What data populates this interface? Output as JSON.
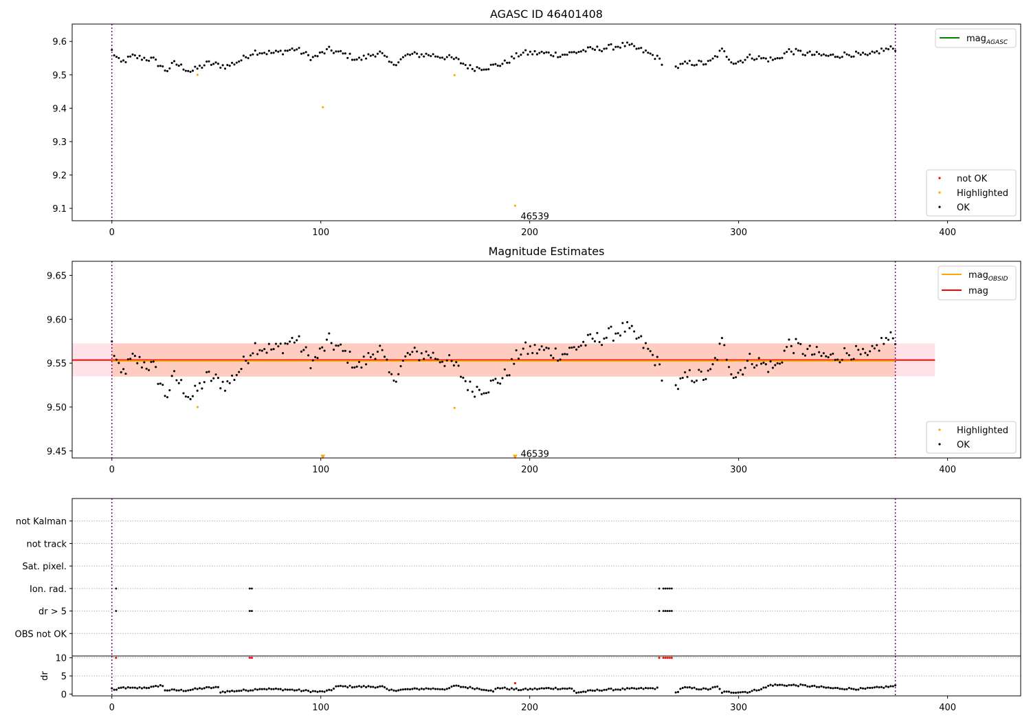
{
  "figure": {
    "colors": {
      "ok": "#000000",
      "highlighted": "#ffa500",
      "not_ok": "#ff0000",
      "mag_agasc": "#008000",
      "mag_obsid": "#ffa500",
      "mag": "#ff0000",
      "obsid_boundary": "#800080",
      "band_outer": "#ffc0cb",
      "band_inner": "#ffa07a",
      "flag_grid": "#b0b0b0"
    }
  },
  "chart_data": [
    {
      "type": "scatter",
      "title": "AGASC ID 46401408",
      "xlim": [
        -19,
        435
      ],
      "ylim": [
        9.063,
        9.652
      ],
      "xticks": [
        "0",
        "100",
        "200",
        "300",
        "400"
      ],
      "yticks": [
        "9.1",
        "9.2",
        "9.3",
        "9.4",
        "9.5",
        "9.6"
      ],
      "grid": false,
      "obsid_boundaries": [
        0,
        375
      ],
      "obsid_label": {
        "text": "46539",
        "x": 188,
        "y": 9.075
      },
      "legend_lines": {
        "position": "top-right",
        "entries": [
          {
            "label": "mag",
            "subscript": "AGASC",
            "style": "line",
            "color": "#008000"
          }
        ]
      },
      "legend_points": {
        "position": "bottom-right",
        "entries": [
          {
            "label": "not OK",
            "style": "point",
            "color": "#ff0000"
          },
          {
            "label": "Highlighted",
            "style": "point",
            "color": "#ffa500"
          },
          {
            "label": "OK",
            "style": "point",
            "color": "#000000"
          }
        ]
      },
      "series": [
        {
          "name": "Highlighted",
          "color": "#ffa500",
          "marker": "point",
          "points": [
            [
              41,
              9.5
            ],
            [
              101,
              9.403
            ],
            [
              164,
              9.499
            ],
            [
              193,
              9.108
            ]
          ]
        },
        {
          "name": "OK",
          "color": "#000000",
          "marker": "point",
          "anchors": [
            [
              0,
              9.572
            ],
            [
              4,
              9.535
            ],
            [
              10,
              9.555
            ],
            [
              20,
              9.545
            ],
            [
              26,
              9.512
            ],
            [
              30,
              9.535
            ],
            [
              38,
              9.51
            ],
            [
              46,
              9.535
            ],
            [
              55,
              9.525
            ],
            [
              62,
              9.545
            ],
            [
              68,
              9.57
            ],
            [
              78,
              9.565
            ],
            [
              88,
              9.578
            ],
            [
              96,
              9.55
            ],
            [
              104,
              9.575
            ],
            [
              112,
              9.56
            ],
            [
              118,
              9.545
            ],
            [
              128,
              9.568
            ],
            [
              134,
              9.53
            ],
            [
              142,
              9.56
            ],
            [
              152,
              9.56
            ],
            [
              160,
              9.553
            ],
            [
              165,
              9.545
            ],
            [
              172,
              9.52
            ],
            [
              180,
              9.523
            ],
            [
              188,
              9.535
            ],
            [
              196,
              9.565
            ],
            [
              206,
              9.565
            ],
            [
              216,
              9.56
            ],
            [
              226,
              9.573
            ],
            [
              236,
              9.58
            ],
            [
              246,
              9.59
            ],
            [
              254,
              9.572
            ],
            [
              260,
              9.555
            ],
            [
              264,
              9.535
            ],
            [
              268,
              9.518
            ],
            [
              276,
              9.535
            ],
            [
              286,
              9.535
            ],
            [
              292,
              9.573
            ],
            [
              298,
              9.535
            ],
            [
              306,
              9.555
            ],
            [
              312,
              9.548
            ],
            [
              318,
              9.545
            ],
            [
              324,
              9.572
            ],
            [
              334,
              9.562
            ],
            [
              344,
              9.556
            ],
            [
              354,
              9.563
            ],
            [
              362,
              9.555
            ],
            [
              368,
              9.573
            ],
            [
              375,
              9.58
            ]
          ],
          "count": 340,
          "exclude": [
            [
              264,
              269
            ]
          ],
          "jitter": 0.009
        }
      ]
    },
    {
      "type": "scatter",
      "title": "Magnitude Estimates",
      "xlim": [
        -19,
        435
      ],
      "ylim": [
        9.442,
        9.666
      ],
      "xticks": [
        "0",
        "100",
        "200",
        "300",
        "400"
      ],
      "yticks": [
        "9.45",
        "9.50",
        "9.55",
        "9.60",
        "9.65"
      ],
      "grid": false,
      "obsid_boundaries": [
        0,
        375
      ],
      "obsid_label": {
        "text": "46539",
        "x": 188,
        "y": 9.447
      },
      "mag": 9.5535,
      "mag_obsid": 9.5525,
      "band_outer": [
        9.535,
        9.5725
      ],
      "band_inner": [
        9.5345,
        9.5725
      ],
      "band_x": [
        -19,
        394
      ],
      "legend_lines": {
        "position": "top-right",
        "entries": [
          {
            "label": "mag",
            "subscript": "OBSID",
            "style": "line",
            "color": "#ffa500"
          },
          {
            "label": "mag",
            "style": "line",
            "color": "#ff0000"
          }
        ]
      },
      "legend_points": {
        "position": "bottom-right",
        "entries": [
          {
            "label": "Highlighted",
            "style": "point",
            "color": "#ffa500"
          },
          {
            "label": "OK",
            "style": "point",
            "color": "#000000"
          }
        ]
      },
      "series": [
        {
          "name": "Highlighted",
          "color": "#ffa500",
          "marker": "point",
          "points": [
            [
              41,
              9.5
            ],
            [
              164,
              9.499
            ]
          ]
        },
        {
          "name": "Highlighted",
          "color": "#ffa500",
          "marker": "triangle-down",
          "points": [
            [
              101,
              9.443
            ],
            [
              193,
              9.443
            ]
          ]
        },
        {
          "name": "OK",
          "color": "#000000",
          "marker": "point",
          "anchors": [
            [
              0,
              9.572
            ],
            [
              4,
              9.535
            ],
            [
              10,
              9.555
            ],
            [
              20,
              9.545
            ],
            [
              26,
              9.512
            ],
            [
              30,
              9.535
            ],
            [
              38,
              9.51
            ],
            [
              46,
              9.535
            ],
            [
              55,
              9.525
            ],
            [
              62,
              9.545
            ],
            [
              68,
              9.57
            ],
            [
              78,
              9.565
            ],
            [
              88,
              9.578
            ],
            [
              96,
              9.55
            ],
            [
              104,
              9.575
            ],
            [
              112,
              9.56
            ],
            [
              118,
              9.545
            ],
            [
              128,
              9.568
            ],
            [
              134,
              9.53
            ],
            [
              142,
              9.56
            ],
            [
              152,
              9.56
            ],
            [
              160,
              9.553
            ],
            [
              165,
              9.545
            ],
            [
              172,
              9.52
            ],
            [
              180,
              9.523
            ],
            [
              188,
              9.535
            ],
            [
              196,
              9.565
            ],
            [
              206,
              9.565
            ],
            [
              216,
              9.56
            ],
            [
              226,
              9.573
            ],
            [
              236,
              9.58
            ],
            [
              246,
              9.59
            ],
            [
              254,
              9.572
            ],
            [
              260,
              9.555
            ],
            [
              264,
              9.535
            ],
            [
              268,
              9.518
            ],
            [
              276,
              9.535
            ],
            [
              286,
              9.535
            ],
            [
              292,
              9.573
            ],
            [
              298,
              9.535
            ],
            [
              306,
              9.555
            ],
            [
              312,
              9.548
            ],
            [
              318,
              9.545
            ],
            [
              324,
              9.572
            ],
            [
              334,
              9.562
            ],
            [
              344,
              9.556
            ],
            [
              354,
              9.563
            ],
            [
              362,
              9.555
            ],
            [
              368,
              9.573
            ],
            [
              375,
              9.58
            ]
          ],
          "count": 340,
          "exclude": [
            [
              264,
              269
            ]
          ],
          "jitter": 0.009
        }
      ]
    },
    {
      "type": "scatter",
      "title": "",
      "xlim": [
        -19,
        435
      ],
      "ylim": [
        0,
        7
      ],
      "grid": true,
      "obsid_boundaries": [
        0,
        375
      ],
      "categories": [
        "not Kalman",
        "not track",
        "Sat. pixel.",
        "Ion. rad.",
        "dr > 5",
        "OBS not OK"
      ],
      "flags": {
        "Ion. rad.": [
          2,
          66,
          67,
          262,
          264,
          265,
          266,
          267,
          268
        ],
        "dr > 5": [
          2,
          66,
          67,
          262,
          264,
          265,
          266,
          267,
          268
        ]
      },
      "series": [
        {
          "name": "OK",
          "color": "#000000",
          "marker": "point",
          "flag": "Ion. rad."
        },
        {
          "name": "OK",
          "color": "#000000",
          "marker": "point",
          "flag": "dr > 5"
        }
      ]
    },
    {
      "type": "scatter",
      "title": "",
      "xlim": [
        -19,
        435
      ],
      "ylim": [
        -0.5,
        10.5
      ],
      "xticks": [
        "0",
        "100",
        "200",
        "300",
        "400"
      ],
      "yticks": [
        "0",
        "5",
        "10"
      ],
      "ylabel": "dr",
      "grid": true,
      "obsid_boundaries": [
        0,
        375
      ],
      "series": [
        {
          "name": "not OK",
          "color": "#ff0000",
          "marker": "point",
          "points": [
            [
              2,
              10
            ],
            [
              66,
              10
            ],
            [
              67,
              10
            ],
            [
              262,
              10
            ],
            [
              264,
              10
            ],
            [
              265,
              10
            ],
            [
              266,
              10
            ],
            [
              267,
              10
            ],
            [
              268,
              10
            ]
          ]
        },
        {
          "name": "not OK",
          "color": "#ff0000",
          "marker": "point",
          "points": [
            [
              193,
              3.0
            ]
          ]
        },
        {
          "name": "OK",
          "color": "#000000",
          "marker": "point",
          "anchors": [
            [
              0,
              1.5
            ],
            [
              2,
              1.1
            ],
            [
              5,
              1.8
            ],
            [
              10,
              1.6
            ],
            [
              20,
              1.9
            ],
            [
              24,
              2.6
            ],
            [
              25,
              1.1
            ],
            [
              35,
              1.0
            ],
            [
              45,
              1.7
            ],
            [
              51,
              1.8
            ],
            [
              52,
              0.6
            ],
            [
              68,
              1.2
            ],
            [
              70,
              1.5
            ],
            [
              85,
              1.2
            ],
            [
              100,
              0.6
            ],
            [
              105,
              1.0
            ],
            [
              107,
              2.1
            ],
            [
              130,
              2.0
            ],
            [
              132,
              1.0
            ],
            [
              150,
              1.5
            ],
            [
              162,
              1.4
            ],
            [
              163,
              2.3
            ],
            [
              180,
              1.2
            ],
            [
              183,
              0.5
            ],
            [
              184,
              1.8
            ],
            [
              195,
              1.2
            ],
            [
              210,
              1.6
            ],
            [
              220,
              1.5
            ],
            [
              222,
              0.4
            ],
            [
              235,
              1.2
            ],
            [
              260,
              1.6
            ],
            [
              264,
              1.5
            ],
            [
              267,
              0.8
            ],
            [
              270,
              0.3
            ],
            [
              273,
              1.8
            ],
            [
              285,
              1.3
            ],
            [
              290,
              2.0
            ],
            [
              292,
              0.5
            ],
            [
              305,
              0.6
            ],
            [
              313,
              1.8
            ],
            [
              315,
              2.5
            ],
            [
              330,
              2.4
            ],
            [
              345,
              1.6
            ],
            [
              360,
              1.4
            ],
            [
              375,
              2.2
            ]
          ],
          "count": 340,
          "exclude": [
            [
              262,
              269
            ]
          ],
          "jitter": 0.25
        }
      ]
    }
  ]
}
